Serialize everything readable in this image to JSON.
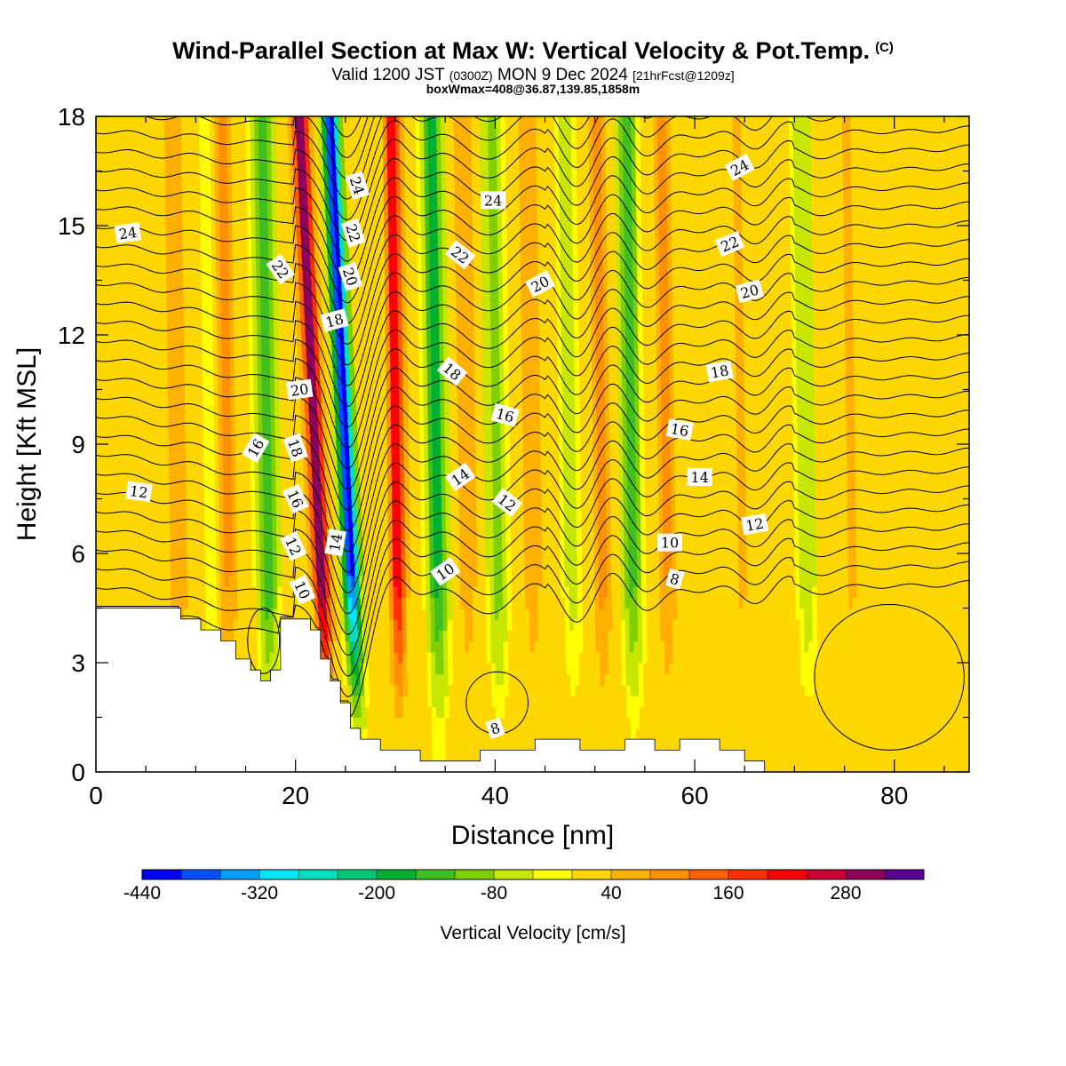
{
  "header": {
    "title": "Wind-Parallel Section at Max W: Vertical Velocity & Pot.Temp.",
    "title_mark": "(C)",
    "subtitle_main": "Valid 1200 JST",
    "subtitle_utc": "(0300Z)",
    "subtitle_date": "MON 9 Dec 2024",
    "subtitle_fcst": "[21hrFcst@1209z]",
    "subtitle_box": "boxWmax=408@36.87,139.85,1858m"
  },
  "chart_data": {
    "type": "heatmap",
    "title": "Wind-Parallel Section at Max W: Vertical Velocity & Pot.Temp.",
    "xlabel": "Distance [nm]",
    "ylabel": "Height [Kft MSL]",
    "xlim": [
      0,
      87.5
    ],
    "ylim": [
      0,
      18
    ],
    "x_ticks": [
      0,
      20,
      40,
      60,
      80
    ],
    "y_ticks": [
      0,
      3,
      6,
      9,
      12,
      15,
      18
    ],
    "colorbar": {
      "title": "Vertical Velocity [cm/s]",
      "min": -440,
      "max": 360,
      "step": 40,
      "tick_values": [
        -440,
        -320,
        -200,
        -80,
        40,
        160,
        280
      ],
      "colors": [
        "#0000ff",
        "#0050ff",
        "#00a0ff",
        "#00e6ff",
        "#00e0c0",
        "#00c878",
        "#00b030",
        "#40c020",
        "#80d000",
        "#c8e600",
        "#ffff00",
        "#ffd700",
        "#ffb000",
        "#ff9000",
        "#ff6000",
        "#ff3000",
        "#ff0000",
        "#cc0030",
        "#90005a",
        "#5a0090"
      ]
    },
    "terrain_kft": [
      [
        0,
        4.5
      ],
      [
        8.5,
        4.5
      ],
      [
        8.5,
        4.2
      ],
      [
        10.5,
        4.2
      ],
      [
        10.5,
        3.9
      ],
      [
        12.5,
        3.9
      ],
      [
        12.5,
        3.6
      ],
      [
        14,
        3.6
      ],
      [
        14,
        3.1
      ],
      [
        15.5,
        3.1
      ],
      [
        15.5,
        2.8
      ],
      [
        16.5,
        2.8
      ],
      [
        16.5,
        2.5
      ],
      [
        17.5,
        2.5
      ],
      [
        17.5,
        2.8
      ],
      [
        18.5,
        2.8
      ],
      [
        18.5,
        4.2
      ],
      [
        21.5,
        4.2
      ],
      [
        21.5,
        3.9
      ],
      [
        22.5,
        3.9
      ],
      [
        22.5,
        3.1
      ],
      [
        23.5,
        3.1
      ],
      [
        23.5,
        2.5
      ],
      [
        24.5,
        2.5
      ],
      [
        24.5,
        1.9
      ],
      [
        25.5,
        1.9
      ],
      [
        25.5,
        1.2
      ],
      [
        26.5,
        1.2
      ],
      [
        26.5,
        0.9
      ],
      [
        28.5,
        0.9
      ],
      [
        28.5,
        0.6
      ],
      [
        32.5,
        0.6
      ],
      [
        32.5,
        0.3
      ],
      [
        38.5,
        0.3
      ],
      [
        38.5,
        0.6
      ],
      [
        44,
        0.6
      ],
      [
        44,
        0.9
      ],
      [
        48.5,
        0.9
      ],
      [
        48.5,
        0.6
      ],
      [
        53,
        0.6
      ],
      [
        53,
        0.9
      ],
      [
        56,
        0.9
      ],
      [
        56,
        0.6
      ],
      [
        58.5,
        0.6
      ],
      [
        58.5,
        0.9
      ],
      [
        62.5,
        0.9
      ],
      [
        62.5,
        0.6
      ],
      [
        65,
        0.6
      ],
      [
        65,
        0.3
      ],
      [
        67,
        0.3
      ],
      [
        67,
        0.0
      ],
      [
        87.5,
        0.0
      ]
    ],
    "w_bands": [
      {
        "x": 3.5,
        "w": -20
      },
      {
        "x": 8.5,
        "w": 80
      },
      {
        "x": 12,
        "w": -40
      },
      {
        "x": 13.5,
        "w": 90
      },
      {
        "x": 17.5,
        "w": -160
      },
      {
        "x": 23.5,
        "w": 330
      },
      {
        "x": 26.5,
        "w": -420
      },
      {
        "x": 30.5,
        "w": 240
      },
      {
        "x": 34.5,
        "w": -190
      },
      {
        "x": 37.5,
        "w": 70
      },
      {
        "x": 40.5,
        "w": -110
      },
      {
        "x": 44,
        "w": 70
      },
      {
        "x": 48,
        "w": -60
      },
      {
        "x": 51,
        "w": 100
      },
      {
        "x": 54,
        "w": -140
      },
      {
        "x": 57.5,
        "w": 90
      },
      {
        "x": 65,
        "w": 50
      },
      {
        "x": 71.5,
        "w": -70
      },
      {
        "x": 76,
        "w": 50
      },
      {
        "x": 81,
        "w": 30
      }
    ],
    "theta_levels": [
      8,
      10,
      12,
      14,
      16,
      18,
      20,
      22,
      24
    ],
    "contour_labels": [
      {
        "text": "24",
        "x": 3.2,
        "y": 14.8,
        "rot": -8
      },
      {
        "text": "24",
        "x": 26.2,
        "y": 16.1,
        "rot": 72
      },
      {
        "text": "22",
        "x": 25.8,
        "y": 14.8,
        "rot": 72
      },
      {
        "text": "20",
        "x": 25.5,
        "y": 13.6,
        "rot": 72
      },
      {
        "text": "22",
        "x": 18.5,
        "y": 13.8,
        "rot": 55
      },
      {
        "text": "18",
        "x": 23.9,
        "y": 12.4,
        "rot": -15
      },
      {
        "text": "20",
        "x": 20.4,
        "y": 10.5,
        "rot": -8
      },
      {
        "text": "16",
        "x": 16.0,
        "y": 8.9,
        "rot": -60
      },
      {
        "text": "18",
        "x": 20.0,
        "y": 8.9,
        "rot": 70
      },
      {
        "text": "12",
        "x": 4.3,
        "y": 7.7,
        "rot": 8
      },
      {
        "text": "16",
        "x": 20.0,
        "y": 7.5,
        "rot": 65
      },
      {
        "text": "12",
        "x": 19.8,
        "y": 6.2,
        "rot": 65
      },
      {
        "text": "10",
        "x": 20.7,
        "y": 5.0,
        "rot": 65
      },
      {
        "text": "14",
        "x": 24.0,
        "y": 6.3,
        "rot": -80
      },
      {
        "text": "24",
        "x": 39.8,
        "y": 15.7,
        "rot": 0
      },
      {
        "text": "22",
        "x": 36.5,
        "y": 14.2,
        "rot": 38
      },
      {
        "text": "20",
        "x": 44.5,
        "y": 13.4,
        "rot": -28
      },
      {
        "text": "18",
        "x": 35.7,
        "y": 11.0,
        "rot": 40
      },
      {
        "text": "16",
        "x": 41.0,
        "y": 9.8,
        "rot": 15
      },
      {
        "text": "14",
        "x": 36.5,
        "y": 8.1,
        "rot": -35
      },
      {
        "text": "12",
        "x": 41.2,
        "y": 7.4,
        "rot": 38
      },
      {
        "text": "10",
        "x": 35.0,
        "y": 5.5,
        "rot": -35
      },
      {
        "text": "8",
        "x": 40.0,
        "y": 1.2,
        "rot": -20
      },
      {
        "text": "24",
        "x": 64.5,
        "y": 16.6,
        "rot": -28
      },
      {
        "text": "22",
        "x": 63.5,
        "y": 14.5,
        "rot": -22
      },
      {
        "text": "20",
        "x": 65.5,
        "y": 13.2,
        "rot": -15
      },
      {
        "text": "18",
        "x": 62.5,
        "y": 11.0,
        "rot": -10
      },
      {
        "text": "16",
        "x": 58.5,
        "y": 9.4,
        "rot": 10
      },
      {
        "text": "14",
        "x": 60.5,
        "y": 8.1,
        "rot": 0
      },
      {
        "text": "12",
        "x": 66.0,
        "y": 6.8,
        "rot": -10
      },
      {
        "text": "10",
        "x": 57.5,
        "y": 6.3,
        "rot": 0
      },
      {
        "text": "8",
        "x": 58.0,
        "y": 5.3,
        "rot": 15
      }
    ]
  }
}
